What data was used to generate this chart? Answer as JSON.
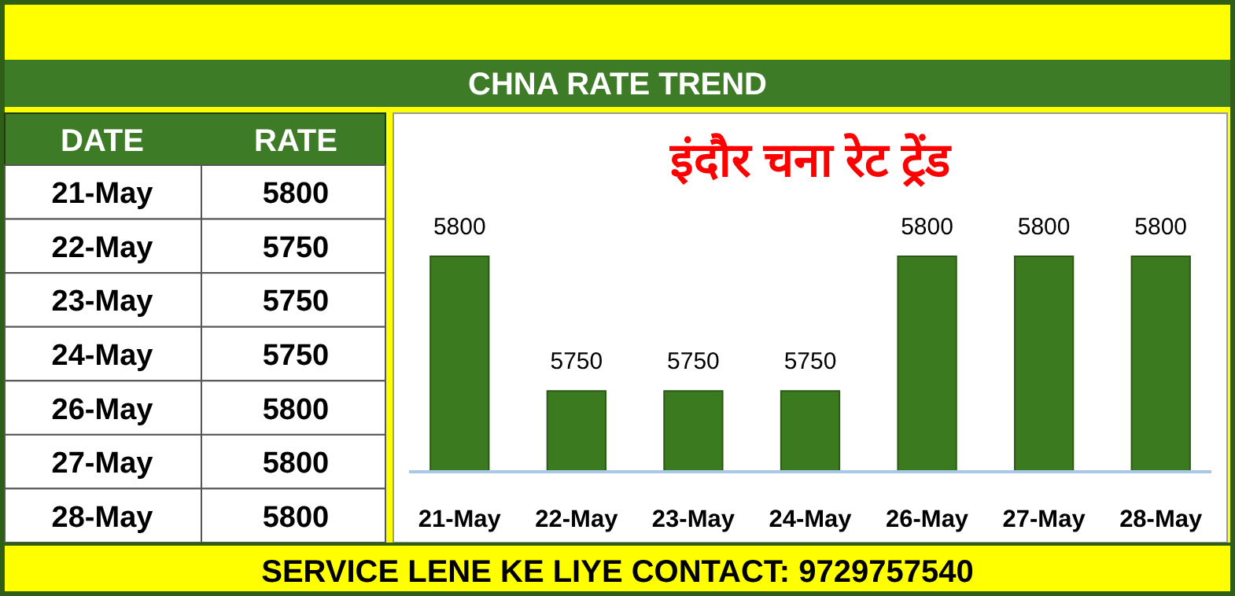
{
  "chart_data": {
    "type": "bar",
    "title": "इंदौर चना रेट ट्रेंड",
    "subtitle": "CHNA RATE TREND",
    "categories": [
      "21-May",
      "22-May",
      "23-May",
      "24-May",
      "26-May",
      "27-May",
      "28-May"
    ],
    "values": [
      5800,
      5750,
      5750,
      5750,
      5800,
      5800,
      5800
    ],
    "color": "#3b7a1f",
    "ylim": [
      5720,
      5800
    ],
    "data_labels": true,
    "annotations": [
      "SERVICE LENE KE LIYE CONTACT: 9729757540",
      "DATE",
      "RATE",
      "5800",
      "5750",
      "5750",
      "5750",
      "5800",
      "5800",
      "5800"
    ]
  }
}
